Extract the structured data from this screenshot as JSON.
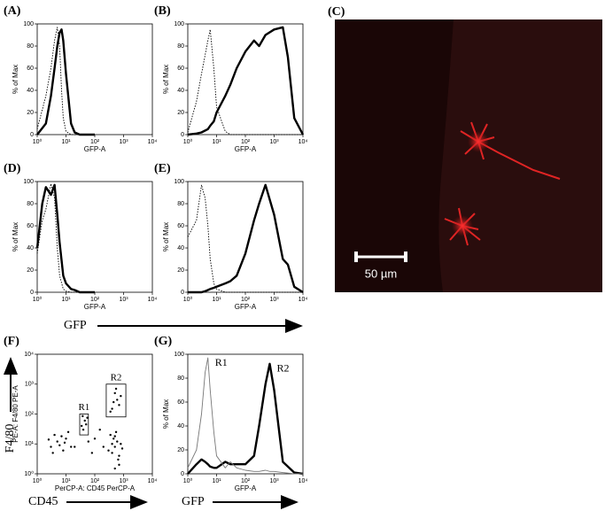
{
  "chart_data": [
    {
      "type": "line",
      "title": "(A)",
      "xlabel": "GFP-A",
      "ylabel": "% of Max",
      "xscale": "log",
      "xlim": [
        1,
        10000
      ],
      "xticks": [
        {
          "value": 1,
          "label": "10⁰"
        },
        {
          "value": 10,
          "label": "10¹"
        },
        {
          "value": 100,
          "label": "10²"
        },
        {
          "value": 1000,
          "label": "10³"
        },
        {
          "value": 10000,
          "label": "10⁴"
        }
      ],
      "ylim": [
        0,
        100
      ],
      "yticks": [
        0,
        20,
        40,
        60,
        80,
        100
      ],
      "x": [
        1,
        2,
        3,
        4,
        5,
        6,
        7,
        8,
        10,
        15,
        20,
        30,
        100
      ],
      "series": [
        {
          "color": "#000000",
          "style": "thick",
          "values": [
            0,
            10,
            35,
            60,
            80,
            92,
            95,
            85,
            55,
            10,
            2,
            0,
            0
          ]
        },
        {
          "color": "#000000",
          "style": "dotted",
          "values": [
            5,
            35,
            60,
            85,
            97,
            80,
            40,
            15,
            3,
            0,
            0,
            0,
            0
          ]
        }
      ]
    },
    {
      "type": "line",
      "title": "(B)",
      "xlabel": "GFP-A",
      "ylabel": "% of Max",
      "xscale": "log",
      "xlim": [
        1,
        10000
      ],
      "xticks": [
        {
          "value": 1,
          "label": "10⁰"
        },
        {
          "value": 10,
          "label": "10¹"
        },
        {
          "value": 100,
          "label": "10²"
        },
        {
          "value": 1000,
          "label": "10³"
        },
        {
          "value": 10000,
          "label": "10⁴"
        }
      ],
      "ylim": [
        0,
        100
      ],
      "yticks": [
        0,
        20,
        40,
        60,
        80,
        100
      ],
      "x": [
        1,
        2,
        3,
        5,
        6,
        8,
        10,
        20,
        30,
        50,
        100,
        200,
        300,
        500,
        1000,
        2000,
        3000,
        5000,
        10000
      ],
      "series": [
        {
          "color": "#000000",
          "style": "thick",
          "values": [
            0,
            1,
            2,
            5,
            8,
            12,
            20,
            35,
            45,
            60,
            75,
            85,
            80,
            90,
            95,
            97,
            70,
            15,
            0
          ]
        },
        {
          "color": "#000000",
          "style": "dotted",
          "values": [
            2,
            30,
            55,
            85,
            95,
            60,
            25,
            3,
            0,
            0,
            0,
            0,
            0,
            0,
            0,
            0,
            0,
            0,
            0
          ]
        }
      ]
    },
    {
      "type": "line",
      "title": "(D)",
      "xlabel": "GFP-A",
      "ylabel": "% of Max",
      "xscale": "log",
      "xlim": [
        1,
        10000
      ],
      "xticks": [
        {
          "value": 1,
          "label": "10⁰"
        },
        {
          "value": 10,
          "label": "10¹"
        },
        {
          "value": 100,
          "label": "10²"
        },
        {
          "value": 1000,
          "label": "10³"
        },
        {
          "value": 10000,
          "label": "10⁴"
        }
      ],
      "ylim": [
        0,
        100
      ],
      "yticks": [
        0,
        20,
        40,
        60,
        80,
        100
      ],
      "x": [
        1,
        1.5,
        2,
        3,
        4,
        5,
        6,
        8,
        10,
        15,
        20,
        30,
        100
      ],
      "series": [
        {
          "color": "#000000",
          "style": "thick",
          "values": [
            40,
            80,
            95,
            88,
            97,
            70,
            45,
            15,
            8,
            3,
            2,
            0,
            0
          ]
        },
        {
          "color": "#000000",
          "style": "dotted",
          "values": [
            35,
            65,
            75,
            98,
            85,
            40,
            15,
            3,
            1,
            0,
            0,
            0,
            0
          ]
        }
      ]
    },
    {
      "type": "line",
      "title": "(E)",
      "xlabel": "GFP-A",
      "ylabel": "% of Max",
      "xscale": "log",
      "xlim": [
        1,
        10000
      ],
      "xticks": [
        {
          "value": 1,
          "label": "10⁰"
        },
        {
          "value": 10,
          "label": "10¹"
        },
        {
          "value": 100,
          "label": "10²"
        },
        {
          "value": 1000,
          "label": "10³"
        },
        {
          "value": 10000,
          "label": "10⁴"
        }
      ],
      "ylim": [
        0,
        100
      ],
      "yticks": [
        0,
        20,
        40,
        60,
        80,
        100
      ],
      "x": [
        1,
        2,
        3,
        4,
        5,
        6,
        8,
        10,
        20,
        30,
        50,
        100,
        200,
        300,
        500,
        1000,
        2000,
        3000,
        5000,
        10000
      ],
      "series": [
        {
          "color": "#000000",
          "style": "thick",
          "values": [
            0,
            0,
            0,
            1,
            2,
            3,
            4,
            5,
            8,
            10,
            15,
            35,
            65,
            80,
            97,
            70,
            30,
            25,
            5,
            0
          ]
        },
        {
          "color": "#000000",
          "style": "dotted",
          "values": [
            50,
            65,
            97,
            85,
            60,
            30,
            8,
            3,
            0,
            0,
            0,
            0,
            0,
            0,
            0,
            0,
            0,
            0,
            0,
            0
          ]
        }
      ]
    },
    {
      "type": "scatter",
      "title": "(F)",
      "xlabel": "PerCP-A: CD45 PerCP-A",
      "ylabel": "PE-A: F4/80 PE-A",
      "xscale": "log",
      "yscale": "log",
      "xlim": [
        1,
        10000
      ],
      "xticks": [
        {
          "value": 1,
          "label": "10⁰"
        },
        {
          "value": 10,
          "label": "10¹"
        },
        {
          "value": 100,
          "label": "10²"
        },
        {
          "value": 1000,
          "label": "10³"
        },
        {
          "value": 10000,
          "label": "10⁴"
        }
      ],
      "ylim": [
        1,
        10000
      ],
      "yticks": [
        {
          "value": 1,
          "label": "10⁰"
        },
        {
          "value": 10,
          "label": "10¹"
        },
        {
          "value": 100,
          "label": "10²"
        },
        {
          "value": 1000,
          "label": "10³"
        },
        {
          "value": 10000,
          "label": "10⁴"
        }
      ],
      "color": "#000000",
      "x": [
        3,
        5,
        8,
        4,
        10,
        6,
        12,
        2.5,
        7,
        15,
        3.5,
        9,
        35,
        45,
        40,
        55,
        50,
        38,
        400,
        500,
        600,
        350,
        700,
        450,
        800,
        550,
        650,
        500,
        900,
        400,
        300,
        400,
        600,
        500,
        700,
        800,
        450,
        550,
        350,
        100,
        150,
        200,
        80,
        60,
        20,
        500,
        700
      ],
      "values": [
        8,
        12,
        6,
        20,
        15,
        9,
        25,
        14,
        18,
        8,
        5,
        11,
        40,
        60,
        30,
        75,
        45,
        85,
        5,
        8,
        12,
        20,
        4,
        15,
        10,
        25,
        3,
        18,
        7,
        10,
        6,
        150,
        300,
        500,
        200,
        400,
        250,
        700,
        120,
        15,
        30,
        8,
        5,
        12,
        8,
        1.5,
        2
      ],
      "gates": [
        {
          "label": "R1",
          "xlim": [
            30,
            60
          ],
          "ylim": [
            20,
            100
          ]
        },
        {
          "label": "R2",
          "xlim": [
            250,
            1200
          ],
          "ylim": [
            80,
            1000
          ]
        }
      ]
    },
    {
      "type": "line",
      "title": "(G)",
      "xlabel": "GFP-A",
      "ylabel": "% of Max",
      "xscale": "log",
      "xlim": [
        1,
        10000
      ],
      "xticks": [
        {
          "value": 1,
          "label": "10⁰"
        },
        {
          "value": 10,
          "label": "10¹"
        },
        {
          "value": 100,
          "label": "10²"
        },
        {
          "value": 1000,
          "label": "10³"
        },
        {
          "value": 10000,
          "label": "10⁴"
        }
      ],
      "ylim": [
        0,
        100
      ],
      "yticks": [
        0,
        20,
        40,
        60,
        80,
        100
      ],
      "x": [
        1,
        2,
        3,
        4,
        5,
        6,
        8,
        10,
        20,
        30,
        50,
        100,
        200,
        300,
        500,
        700,
        1000,
        2000,
        5000,
        10000
      ],
      "series": [
        {
          "name": "R2",
          "color": "#000000",
          "style": "thick",
          "values": [
            0,
            8,
            12,
            10,
            8,
            6,
            5,
            5,
            10,
            8,
            8,
            8,
            15,
            40,
            75,
            92,
            70,
            10,
            1,
            0
          ]
        },
        {
          "name": "R1",
          "color": "#777777",
          "style": "thin",
          "values": [
            5,
            20,
            50,
            85,
            97,
            70,
            35,
            15,
            5,
            10,
            5,
            3,
            2,
            2,
            3,
            2,
            2,
            1,
            0,
            0
          ]
        }
      ]
    }
  ],
  "image": {
    "label": "(C)",
    "scale_bar": "50 µm"
  },
  "figure_labels": {
    "gfp_de": "GFP",
    "f4_80": "F4/80",
    "cd45": "CD45",
    "gfp_g": "GFP"
  }
}
